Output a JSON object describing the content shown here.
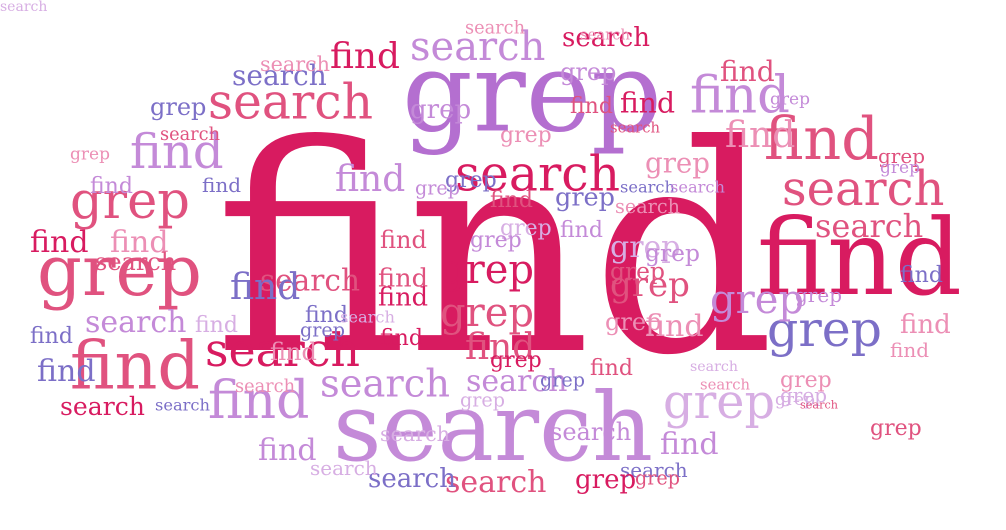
{
  "palette": {
    "crimson": "#d81b60",
    "rose": "#e0527f",
    "pink": "#ec8fb5",
    "lavender": "#c48ad8",
    "violet": "#b46fd0",
    "purple": "#7c6fc7",
    "lilac": "#d7aee3"
  },
  "cloud": {
    "words": [
      {
        "text": "find",
        "color": "#d81b60"
      },
      {
        "text": "grep",
        "color": "#b46fd0"
      },
      {
        "text": "search",
        "color": "#c48ad8"
      },
      {
        "text": "find",
        "color": "#d81b60"
      },
      {
        "text": "grep",
        "color": "#e0527f"
      },
      {
        "text": "find",
        "color": "#e0527f"
      },
      {
        "text": "search",
        "color": "#e0527f"
      },
      {
        "text": "find",
        "color": "#e0527f"
      },
      {
        "text": "grep",
        "color": "#7c6fc7"
      },
      {
        "text": "search",
        "color": "#d81b60"
      },
      {
        "text": "search",
        "color": "#e0527f"
      },
      {
        "text": "search",
        "color": "#c48ad8"
      },
      {
        "text": "find",
        "color": "#c48ad8"
      },
      {
        "text": "grep",
        "color": "#e0527f"
      },
      {
        "text": "find",
        "color": "#c48ad8"
      },
      {
        "text": "search",
        "color": "#d81b60"
      },
      {
        "text": "find",
        "color": "#c48ad8"
      },
      {
        "text": "find",
        "color": "#e0527f"
      },
      {
        "text": "search",
        "color": "#c48ad8"
      },
      {
        "text": "grep",
        "color": "#d7aee3"
      },
      {
        "text": "grep",
        "color": "#d81b60"
      },
      {
        "text": "grep",
        "color": "#e0527f"
      },
      {
        "text": "grep",
        "color": "#e0527f"
      },
      {
        "text": "grep",
        "color": "#d7aee3"
      },
      {
        "text": "grep",
        "color": "#c48ad8"
      },
      {
        "text": "search",
        "color": "#7c6fc7"
      },
      {
        "text": "search",
        "color": "#e0527f"
      },
      {
        "text": "search",
        "color": "#c48ad8"
      },
      {
        "text": "search",
        "color": "#c48ad8"
      },
      {
        "text": "search",
        "color": "#e0527f"
      },
      {
        "text": "search",
        "color": "#7c6fc7"
      },
      {
        "text": "search",
        "color": "#e0527f"
      },
      {
        "text": "search",
        "color": "#7c6fc7"
      },
      {
        "text": "search",
        "color": "#d81b60"
      },
      {
        "text": "find",
        "color": "#d81b60"
      },
      {
        "text": "find",
        "color": "#e0527f"
      },
      {
        "text": "find",
        "color": "#ec8fb5"
      },
      {
        "text": "find",
        "color": "#c48ad8"
      },
      {
        "text": "find",
        "color": "#d81b60"
      },
      {
        "text": "find",
        "color": "#7c6fc7"
      },
      {
        "text": "find",
        "color": "#7c6fc7"
      },
      {
        "text": "find",
        "color": "#c48ad8"
      },
      {
        "text": "find",
        "color": "#e0527f"
      },
      {
        "text": "find",
        "color": "#e0527f"
      },
      {
        "text": "find",
        "color": "#d81b60"
      },
      {
        "text": "find",
        "color": "#e0527f"
      },
      {
        "text": "find",
        "color": "#ec8fb5"
      },
      {
        "text": "find",
        "color": "#ec8fb5"
      },
      {
        "text": "find",
        "color": "#7c6fc7"
      },
      {
        "text": "find",
        "color": "#7c6fc7"
      },
      {
        "text": "find",
        "color": "#e0527f"
      },
      {
        "text": "find",
        "color": "#ec8fb5"
      },
      {
        "text": "find",
        "color": "#d7aee3"
      },
      {
        "text": "find",
        "color": "#ec8fb5"
      },
      {
        "text": "find",
        "color": "#7c6fc7"
      },
      {
        "text": "find",
        "color": "#c48ad8"
      },
      {
        "text": "find",
        "color": "#d81b60"
      },
      {
        "text": "find",
        "color": "#ec8fb5"
      },
      {
        "text": "find",
        "color": "#c48ad8"
      },
      {
        "text": "find",
        "color": "#e0527f"
      },
      {
        "text": "find",
        "color": "#d81b60"
      },
      {
        "text": "find",
        "color": "#7c6fc7"
      },
      {
        "text": "find",
        "color": "#c48ad8"
      },
      {
        "text": "grep",
        "color": "#e0527f"
      },
      {
        "text": "grep",
        "color": "#c48ad8"
      },
      {
        "text": "grep",
        "color": "#7c6fc7"
      },
      {
        "text": "grep",
        "color": "#7c6fc7"
      },
      {
        "text": "grep",
        "color": "#ec8fb5"
      },
      {
        "text": "grep",
        "color": "#d7aee3"
      },
      {
        "text": "grep",
        "color": "#ec8fb5"
      },
      {
        "text": "grep",
        "color": "#ec8fb5"
      },
      {
        "text": "grep",
        "color": "#e0527f"
      },
      {
        "text": "grep",
        "color": "#c48ad8"
      },
      {
        "text": "grep",
        "color": "#c48ad8"
      },
      {
        "text": "grep",
        "color": "#7c6fc7"
      },
      {
        "text": "grep",
        "color": "#ec8fb5"
      },
      {
        "text": "grep",
        "color": "#7c6fc7"
      },
      {
        "text": "grep",
        "color": "#c48ad8"
      },
      {
        "text": "grep",
        "color": "#e0527f"
      },
      {
        "text": "grep",
        "color": "#d81b60"
      },
      {
        "text": "grep",
        "color": "#d7aee3"
      },
      {
        "text": "grep",
        "color": "#7c6fc7"
      },
      {
        "text": "grep",
        "color": "#e0527f"
      },
      {
        "text": "grep",
        "color": "#c48ad8"
      },
      {
        "text": "grep",
        "color": "#d7aee3"
      },
      {
        "text": "grep",
        "color": "#d81b60"
      },
      {
        "text": "grep",
        "color": "#c48ad8"
      },
      {
        "text": "grep",
        "color": "#ec8fb5"
      },
      {
        "text": "grep",
        "color": "#c48ad8"
      },
      {
        "text": "grep",
        "color": "#d7aee3"
      },
      {
        "text": "grep",
        "color": "#c48ad8"
      },
      {
        "text": "search",
        "color": "#e0527f"
      },
      {
        "text": "search",
        "color": "#d81b60"
      },
      {
        "text": "search",
        "color": "#ec8fb5"
      },
      {
        "text": "search",
        "color": "#ec8fb5"
      },
      {
        "text": "search",
        "color": "#d7aee3"
      },
      {
        "text": "search",
        "color": "#ec8fb5"
      },
      {
        "text": "search",
        "color": "#7c6fc7"
      },
      {
        "text": "search",
        "color": "#7c6fc7"
      },
      {
        "text": "search",
        "color": "#c48ad8"
      },
      {
        "text": "search",
        "color": "#d7aee3"
      },
      {
        "text": "search",
        "color": "#d7aee3"
      },
      {
        "text": "search",
        "color": "#c48ad8"
      },
      {
        "text": "search",
        "color": "#ec8fb5"
      },
      {
        "text": "search",
        "color": "#d7aee3"
      },
      {
        "text": "search",
        "color": "#e0527f"
      },
      {
        "text": "search",
        "color": "#e0527f"
      },
      {
        "text": "search",
        "color": "#ec8fb5"
      },
      {
        "text": "search",
        "color": "#ec8fb5"
      },
      {
        "text": "search",
        "color": "#e0527f"
      },
      {
        "text": "search",
        "color": "#d7aee3"
      }
    ]
  }
}
